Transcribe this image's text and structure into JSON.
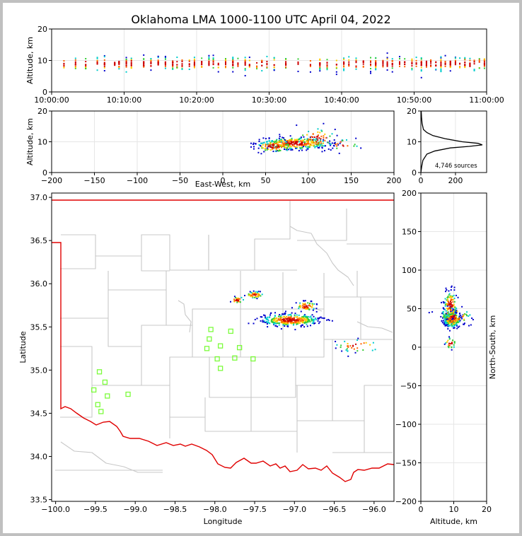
{
  "title": "Oklahoma LMA 1000-1100 UTC April 04, 2022",
  "colors": {
    "state_border": "#e00000",
    "counties": "#c8c8c8",
    "station": "#7cfc3c",
    "hist": "#000000"
  },
  "chart_data": [
    {
      "id": "time_height",
      "type": "scatter",
      "xlabel": "",
      "ylabel": "Altitude, km",
      "xticks": [
        "10:00:00",
        "10:10:00",
        "10:20:00",
        "10:30:00",
        "10:40:00",
        "10:50:00",
        "11:00:00"
      ],
      "xlim_minutes": [
        0,
        60
      ],
      "ylim": [
        0,
        20
      ],
      "yticks": [
        0,
        10,
        20
      ],
      "bursts_minute": [
        1.7,
        3.3,
        4.7,
        6.3,
        7.3,
        8.7,
        9.3,
        10.3,
        11.0,
        12.7,
        13.7,
        14.7,
        15.7,
        16.7,
        17.3,
        18.0,
        19.0,
        19.7,
        20.7,
        21.7,
        22.3,
        23.0,
        24.0,
        25.0,
        25.7,
        26.7,
        27.3,
        28.3,
        29.0,
        29.7,
        30.7,
        32.3,
        34.0,
        35.7,
        37.0,
        38.0,
        39.3,
        40.3,
        41.0,
        42.0,
        43.0,
        44.0,
        44.7,
        45.7,
        46.3,
        47.0,
        48.0,
        48.7,
        49.7,
        50.3,
        51.0,
        51.7,
        52.3,
        53.0,
        53.7,
        54.3,
        55.0,
        55.7,
        56.3,
        57.0,
        57.7,
        58.3,
        59.0,
        59.7
      ]
    },
    {
      "id": "ew_alt",
      "type": "scatter",
      "xlabel": "East-West, km",
      "ylabel": "Altitude, km",
      "xlim": [
        -200,
        200
      ],
      "xticks": [
        -200,
        -150,
        -100,
        -50,
        0,
        50,
        100,
        150,
        200
      ],
      "ylim": [
        0,
        20
      ],
      "yticks": [
        0,
        10,
        20
      ],
      "clusters": [
        {
          "x": 85,
          "y": 9.5,
          "sx": 20,
          "sy": 1.0,
          "n": 320
        },
        {
          "x": 60,
          "y": 8.5,
          "sx": 12,
          "sy": 1.0,
          "n": 90
        },
        {
          "x": 110,
          "y": 11,
          "sx": 12,
          "sy": 1.8,
          "n": 60
        },
        {
          "x": 140,
          "y": 9,
          "sx": 10,
          "sy": 1.0,
          "n": 20
        }
      ]
    },
    {
      "id": "alt_hist",
      "type": "line",
      "xlim": [
        0,
        380
      ],
      "xticks": [
        0,
        200
      ],
      "ylim": [
        0,
        20
      ],
      "yticks": [
        0,
        10,
        20
      ],
      "annotation": "4,746 sources",
      "profile": [
        {
          "alt": 0,
          "count": 0
        },
        {
          "alt": 2,
          "count": 5
        },
        {
          "alt": 4,
          "count": 12
        },
        {
          "alt": 6,
          "count": 35
        },
        {
          "alt": 7,
          "count": 80
        },
        {
          "alt": 8,
          "count": 170
        },
        {
          "alt": 8.5,
          "count": 280
        },
        {
          "alt": 9,
          "count": 355
        },
        {
          "alt": 9.5,
          "count": 330
        },
        {
          "alt": 10,
          "count": 240
        },
        {
          "alt": 11,
          "count": 140
        },
        {
          "alt": 12,
          "count": 70
        },
        {
          "alt": 13,
          "count": 35
        },
        {
          "alt": 14,
          "count": 15
        },
        {
          "alt": 16,
          "count": 7
        },
        {
          "alt": 18,
          "count": 4
        },
        {
          "alt": 20,
          "count": 2
        }
      ]
    },
    {
      "id": "plan_map",
      "type": "scatter",
      "xlabel": "Longitude",
      "ylabel": "Latitude",
      "xlim": [
        -100.05,
        -95.75
      ],
      "ylim": [
        33.48,
        37.05
      ],
      "xticks": [
        -100.0,
        -99.5,
        -99.0,
        -98.5,
        -98.0,
        -97.5,
        -97.0,
        -96.5,
        -96.0
      ],
      "yticks": [
        33.5,
        34.0,
        34.5,
        35.0,
        35.5,
        36.0,
        36.5,
        37.0
      ],
      "xtick_labels": [
        "−100.0",
        "−99.5",
        "−99.0",
        "−98.5",
        "−98.0",
        "−97.5",
        "−97.0",
        "−96.5",
        "−96.0"
      ],
      "ytick_labels": [
        "33.5",
        "34.0",
        "34.5",
        "35.0",
        "35.5",
        "36.0",
        "36.5",
        "37.0"
      ],
      "stations": [
        [
          -99.45,
          34.98
        ],
        [
          -99.38,
          34.86
        ],
        [
          -99.52,
          34.77
        ],
        [
          -99.35,
          34.7
        ],
        [
          -99.47,
          34.6
        ],
        [
          -99.43,
          34.52
        ],
        [
          -99.09,
          34.72
        ],
        [
          -98.05,
          35.47
        ],
        [
          -98.07,
          35.36
        ],
        [
          -98.1,
          35.25
        ],
        [
          -97.93,
          35.28
        ],
        [
          -97.97,
          35.13
        ],
        [
          -97.93,
          35.02
        ],
        [
          -97.8,
          35.45
        ],
        [
          -97.75,
          35.14
        ],
        [
          -97.69,
          35.26
        ],
        [
          -97.52,
          35.13
        ]
      ],
      "clusters": [
        {
          "x": -97.05,
          "y": 35.58,
          "sx": 0.18,
          "sy": 0.035,
          "n": 360
        },
        {
          "x": -96.85,
          "y": 35.74,
          "sx": 0.07,
          "sy": 0.03,
          "n": 60
        },
        {
          "x": -97.5,
          "y": 35.87,
          "sx": 0.06,
          "sy": 0.02,
          "n": 50
        },
        {
          "x": -97.72,
          "y": 35.81,
          "sx": 0.05,
          "sy": 0.02,
          "n": 25
        },
        {
          "x": -96.2,
          "y": 35.28,
          "sx": 0.15,
          "sy": 0.04,
          "n": 35
        }
      ]
    },
    {
      "id": "alt_ns",
      "type": "scatter",
      "xlabel": "Altitude, km",
      "ylabel": "North-South, km",
      "xlim": [
        0,
        20
      ],
      "xticks": [
        0,
        10,
        20
      ],
      "ylim": [
        -200,
        200
      ],
      "yticks": [
        -200,
        -150,
        -100,
        -50,
        0,
        50,
        100,
        150,
        200
      ],
      "ytick_labels": [
        "−200",
        "−150",
        "−100",
        "−50",
        "0",
        "50",
        "100",
        "150",
        "200"
      ],
      "clusters": [
        {
          "x": 9.5,
          "y": 36,
          "sx": 1.3,
          "sy": 5,
          "n": 260
        },
        {
          "x": 9.0,
          "y": 55,
          "sx": 1.0,
          "sy": 9,
          "n": 120
        },
        {
          "x": 10.5,
          "y": 40,
          "sx": 2.5,
          "sy": 6,
          "n": 60
        },
        {
          "x": 9.0,
          "y": 5,
          "sx": 0.9,
          "sy": 4,
          "n": 25
        }
      ]
    }
  ]
}
